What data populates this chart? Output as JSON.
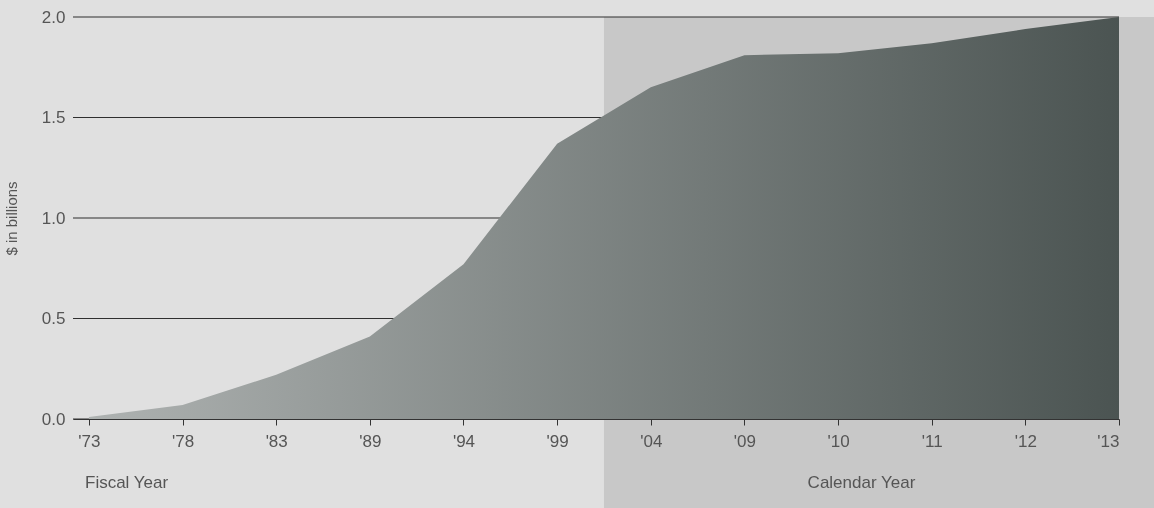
{
  "chart_data": {
    "type": "area",
    "ylabel": "$ in billions",
    "categories": [
      "'73",
      "'78",
      "'83",
      "'89",
      "'94",
      "'99",
      "'04",
      "'09",
      "'10",
      "'11",
      "'12",
      "'13"
    ],
    "values": [
      0.01,
      0.07,
      0.22,
      0.41,
      0.77,
      1.37,
      1.65,
      1.81,
      1.82,
      1.87,
      1.94,
      2.0
    ],
    "color": "#4b5452",
    "ylim": [
      0,
      2
    ],
    "yticks": [
      {
        "value": 0,
        "label": "0.0"
      },
      {
        "value": 0.5,
        "label": "0.5"
      },
      {
        "value": 1,
        "label": "1.0"
      },
      {
        "value": 1.5,
        "label": "1.5"
      },
      {
        "value": 2,
        "label": "2.0"
      }
    ],
    "grid": "y",
    "annotations": [
      "Fiscal Year"
    ],
    "bands": [
      {
        "axis": "x",
        "from": "'04",
        "to": "'13",
        "label": "Calendar Year",
        "color": "#c8c8c8"
      }
    ]
  }
}
